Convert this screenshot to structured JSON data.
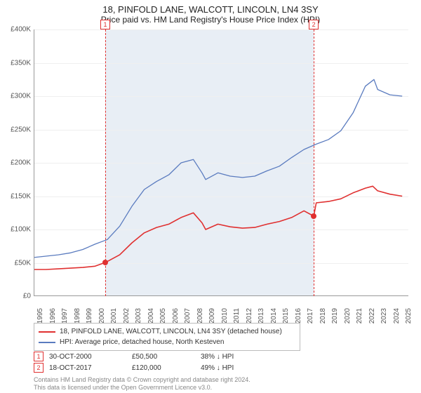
{
  "title": "18, PINFOLD LANE, WALCOTT, LINCOLN, LN4 3SY",
  "subtitle": "Price paid vs. HM Land Registry's House Price Index (HPI)",
  "chart": {
    "type": "line",
    "background_color": "#ffffff",
    "band_color": "#e8eef5",
    "grid_color": "#efefef",
    "axis_color": "#999999",
    "ref_line_color": "#e03030",
    "ylim": [
      0,
      400000
    ],
    "ytick_step": 50000,
    "yticks_labels": [
      "£0",
      "£50K",
      "£100K",
      "£150K",
      "£200K",
      "£250K",
      "£300K",
      "£350K",
      "£400K"
    ],
    "xlim": [
      1995,
      2025.5
    ],
    "xticks": [
      1995,
      1996,
      1997,
      1998,
      1999,
      2000,
      2001,
      2002,
      2003,
      2004,
      2005,
      2006,
      2007,
      2008,
      2009,
      2010,
      2011,
      2012,
      2013,
      2014,
      2015,
      2016,
      2017,
      2018,
      2019,
      2020,
      2021,
      2022,
      2023,
      2024,
      2025
    ],
    "band_start": 2000.83,
    "band_end": 2017.8,
    "series": [
      {
        "name": "18, PINFOLD LANE, WALCOTT, LINCOLN, LN4 3SY (detached house)",
        "color": "#e03030",
        "line_width": 1.6,
        "data": [
          [
            1995,
            40000
          ],
          [
            1996,
            40000
          ],
          [
            1997,
            41000
          ],
          [
            1998,
            42000
          ],
          [
            1999,
            43000
          ],
          [
            2000,
            45000
          ],
          [
            2000.83,
            50500
          ],
          [
            2001,
            52000
          ],
          [
            2002,
            62000
          ],
          [
            2003,
            80000
          ],
          [
            2004,
            95000
          ],
          [
            2005,
            103000
          ],
          [
            2006,
            108000
          ],
          [
            2007,
            118000
          ],
          [
            2008,
            125000
          ],
          [
            2008.7,
            110000
          ],
          [
            2009,
            100000
          ],
          [
            2010,
            108000
          ],
          [
            2011,
            104000
          ],
          [
            2012,
            102000
          ],
          [
            2013,
            103000
          ],
          [
            2014,
            108000
          ],
          [
            2015,
            112000
          ],
          [
            2016,
            118000
          ],
          [
            2017,
            128000
          ],
          [
            2017.8,
            120000
          ],
          [
            2018,
            140000
          ],
          [
            2019,
            142000
          ],
          [
            2020,
            146000
          ],
          [
            2021,
            155000
          ],
          [
            2022,
            162000
          ],
          [
            2022.6,
            165000
          ],
          [
            2023,
            158000
          ],
          [
            2024,
            153000
          ],
          [
            2025,
            150000
          ]
        ]
      },
      {
        "name": "HPI: Average price, detached house, North Kesteven",
        "color": "#5a7bbf",
        "line_width": 1.3,
        "data": [
          [
            1995,
            58000
          ],
          [
            1996,
            60000
          ],
          [
            1997,
            62000
          ],
          [
            1998,
            65000
          ],
          [
            1999,
            70000
          ],
          [
            2000,
            78000
          ],
          [
            2001,
            85000
          ],
          [
            2002,
            105000
          ],
          [
            2003,
            135000
          ],
          [
            2004,
            160000
          ],
          [
            2005,
            172000
          ],
          [
            2006,
            182000
          ],
          [
            2007,
            200000
          ],
          [
            2008,
            205000
          ],
          [
            2008.7,
            185000
          ],
          [
            2009,
            175000
          ],
          [
            2010,
            185000
          ],
          [
            2011,
            180000
          ],
          [
            2012,
            178000
          ],
          [
            2013,
            180000
          ],
          [
            2014,
            188000
          ],
          [
            2015,
            195000
          ],
          [
            2016,
            208000
          ],
          [
            2017,
            220000
          ],
          [
            2018,
            228000
          ],
          [
            2019,
            235000
          ],
          [
            2020,
            248000
          ],
          [
            2021,
            275000
          ],
          [
            2022,
            315000
          ],
          [
            2022.7,
            325000
          ],
          [
            2023,
            310000
          ],
          [
            2024,
            302000
          ],
          [
            2025,
            300000
          ]
        ]
      }
    ],
    "markers": [
      {
        "label": "1",
        "x": 2000.83,
        "y": 50500,
        "box_top_offset": -14
      },
      {
        "label": "2",
        "x": 2017.8,
        "y": 120000,
        "box_top_offset": -14
      }
    ]
  },
  "legend": {
    "items": [
      {
        "color": "#e03030",
        "label": "18, PINFOLD LANE, WALCOTT, LINCOLN, LN4 3SY (detached house)"
      },
      {
        "color": "#5a7bbf",
        "label": "HPI: Average price, detached house, North Kesteven"
      }
    ]
  },
  "sales": [
    {
      "mark": "1",
      "date": "30-OCT-2000",
      "price": "£50,500",
      "hpi": "38% ↓ HPI"
    },
    {
      "mark": "2",
      "date": "18-OCT-2017",
      "price": "£120,000",
      "hpi": "49% ↓ HPI"
    }
  ],
  "footer_line1": "Contains HM Land Registry data © Crown copyright and database right 2024.",
  "footer_line2": "This data is licensed under the Open Government Licence v3.0.",
  "label_fontsize": 10,
  "title_fontsize": 13
}
